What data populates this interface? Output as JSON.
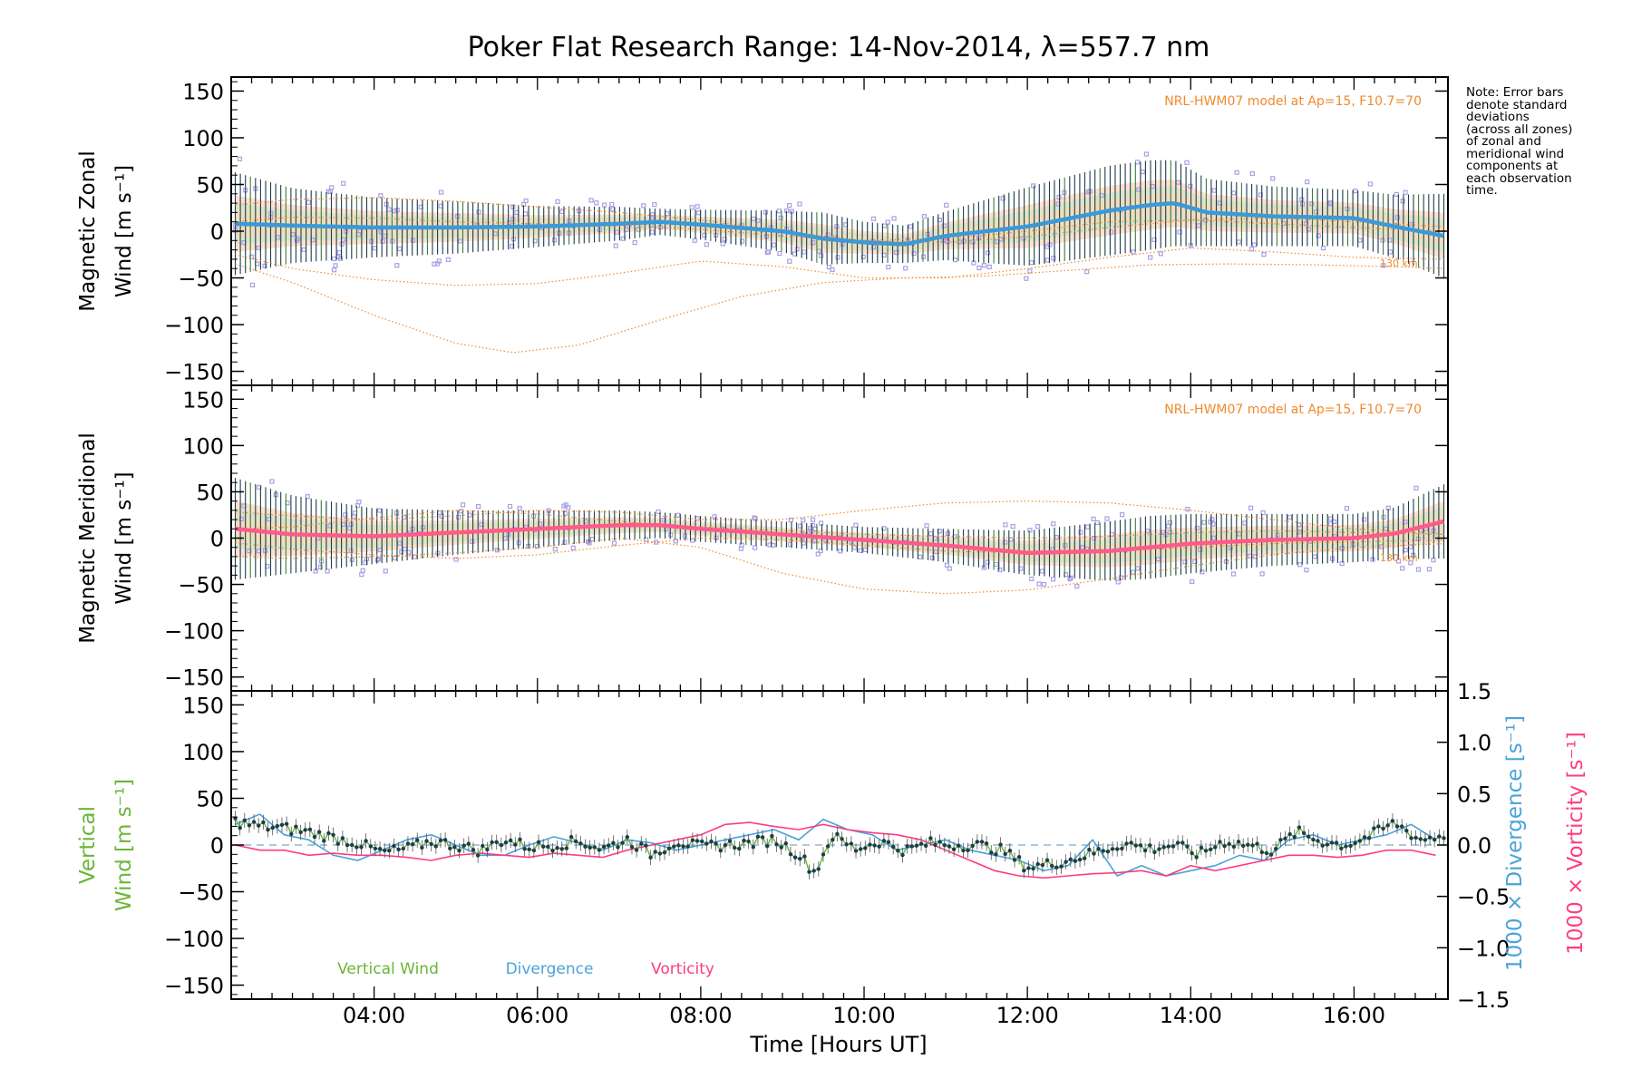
{
  "title": "Poker Flat Research Range: 14-Nov-2014, λ=557.7 nm",
  "note": [
    "Note: Error bars",
    "denote standard",
    "deviations",
    "(across all zones)",
    "of zonal and",
    "meridional wind",
    "components at",
    "each observation",
    "time."
  ],
  "model_label": "NRL-HWM07 model at Ap=15, F10.7=70",
  "model_alt_label": "130 km",
  "colors": {
    "model": "#f08a2e",
    "zonal_mean": "#3a9ad9",
    "meridional_mean": "#ff5a8c",
    "vertical": "#6ab536",
    "divergence": "#4aa3d8",
    "vorticity": "#ff3c80",
    "errorbar": "#1d3d4a",
    "scatter": "#a9a0e6"
  },
  "chart_data": [
    {
      "type": "line",
      "panel": "zonal",
      "ylabel_lines": [
        "Magnetic Zonal",
        "Wind [m s⁻¹]"
      ],
      "xlim": [
        2.25,
        17.15
      ],
      "ylim": [
        -165,
        165
      ],
      "yticks": [
        "150",
        "100",
        "50",
        "0",
        "−50",
        "−100",
        "−150"
      ],
      "ytick_values": [
        150,
        100,
        50,
        0,
        -50,
        -100,
        -150
      ],
      "series": [
        {
          "role": "mean",
          "x": [
            2.3,
            3,
            4,
            5,
            6,
            7,
            7.5,
            8,
            9,
            9.5,
            10,
            10.5,
            11,
            12,
            13,
            13.5,
            13.8,
            14.2,
            15,
            16,
            16.5,
            17.1
          ],
          "y": [
            8,
            6,
            4,
            4,
            5,
            8,
            10,
            7,
            0,
            -8,
            -12,
            -14,
            -5,
            5,
            22,
            28,
            30,
            20,
            16,
            14,
            5,
            -5
          ]
        },
        {
          "role": "spread",
          "x": [
            2.3,
            3,
            4,
            5,
            6,
            7,
            7.5,
            8,
            9,
            9.5,
            10,
            10.5,
            11,
            12,
            13,
            13.5,
            13.8,
            14.2,
            15,
            16,
            16.5,
            17.1
          ],
          "y": [
            55,
            40,
            32,
            28,
            22,
            18,
            14,
            16,
            22,
            28,
            22,
            20,
            26,
            42,
            48,
            48,
            46,
            36,
            32,
            30,
            34,
            45
          ]
        },
        {
          "role": "model",
          "x": [
            2.3,
            3,
            4,
            5,
            6,
            7,
            8,
            9,
            10,
            11,
            12,
            13,
            14,
            15,
            16,
            17.1
          ],
          "y": [
            28,
            34,
            36,
            32,
            26,
            20,
            12,
            0,
            -10,
            -12,
            -6,
            4,
            12,
            14,
            10,
            5
          ]
        },
        {
          "role": "model",
          "x": [
            2.3,
            3,
            4,
            5,
            6,
            7,
            8,
            9,
            10,
            11,
            12,
            13,
            14,
            15,
            16,
            17.1
          ],
          "y": [
            -25,
            -40,
            -52,
            -58,
            -56,
            -45,
            -32,
            -38,
            -50,
            -50,
            -40,
            -28,
            -18,
            -22,
            -28,
            -30
          ]
        },
        {
          "role": "model",
          "x": [
            2.3,
            3,
            4,
            5,
            5.7,
            6.5,
            7.5,
            8.5,
            9.5,
            10.5,
            11.5,
            12.5,
            13.5,
            14.5,
            15.5,
            16.5,
            17.1
          ],
          "y": [
            -35,
            -55,
            -90,
            -120,
            -130,
            -122,
            -95,
            -70,
            -55,
            -50,
            -48,
            -42,
            -36,
            -35,
            -36,
            -38,
            -40
          ]
        },
        {
          "role": "model",
          "x": [
            2.3,
            3,
            4,
            5,
            6,
            7,
            8,
            9,
            10,
            11,
            12,
            13,
            14,
            15,
            16,
            17.1
          ],
          "y": [
            10,
            15,
            14,
            10,
            8,
            6,
            2,
            -5,
            -10,
            -8,
            0,
            10,
            12,
            8,
            4,
            0
          ]
        }
      ]
    },
    {
      "type": "line",
      "panel": "meridional",
      "ylabel_lines": [
        "Magnetic Meridional",
        "Wind [m s⁻¹]"
      ],
      "xlim": [
        2.25,
        17.15
      ],
      "ylim": [
        -165,
        165
      ],
      "yticks": [
        "150",
        "100",
        "50",
        "0",
        "−50",
        "−100",
        "−150"
      ],
      "ytick_values": [
        150,
        100,
        50,
        0,
        -50,
        -100,
        -150
      ],
      "series": [
        {
          "role": "mean",
          "x": [
            2.3,
            3,
            4,
            5,
            6,
            7,
            7.5,
            8,
            9,
            10,
            11,
            12,
            13,
            13.5,
            14,
            15,
            16,
            16.5,
            17.1
          ],
          "y": [
            10,
            4,
            2,
            6,
            10,
            14,
            14,
            10,
            4,
            -2,
            -8,
            -16,
            -14,
            -10,
            -6,
            -2,
            0,
            5,
            18
          ]
        },
        {
          "role": "spread",
          "x": [
            2.3,
            3,
            4,
            5,
            6,
            7,
            7.5,
            8,
            9,
            10,
            11,
            12,
            13,
            13.5,
            14,
            15,
            16,
            16.5,
            17.1
          ],
          "y": [
            55,
            42,
            30,
            24,
            20,
            16,
            14,
            14,
            14,
            14,
            18,
            24,
            32,
            34,
            32,
            28,
            26,
            28,
            40
          ]
        },
        {
          "role": "model",
          "x": [
            2.3,
            3,
            4,
            5,
            6,
            7,
            8,
            9,
            10,
            11,
            12,
            13,
            14,
            15,
            16,
            17.1
          ],
          "y": [
            28,
            24,
            20,
            24,
            30,
            28,
            20,
            20,
            30,
            38,
            40,
            38,
            30,
            20,
            10,
            4
          ]
        },
        {
          "role": "model",
          "x": [
            2.3,
            3,
            4,
            5,
            6,
            7,
            8,
            9,
            10,
            11,
            12,
            13,
            14,
            15,
            16,
            17.1
          ],
          "y": [
            -5,
            -12,
            -18,
            -22,
            -18,
            -8,
            0,
            -2,
            -8,
            -14,
            -16,
            -14,
            -10,
            -6,
            -4,
            -2
          ]
        },
        {
          "role": "model",
          "x": [
            2.3,
            3,
            4,
            5,
            6,
            7,
            8,
            9,
            10,
            11,
            12,
            13,
            14,
            15,
            16,
            17.1
          ],
          "y": [
            -20,
            -22,
            -20,
            -16,
            -10,
            0,
            -10,
            -38,
            -55,
            -60,
            -56,
            -44,
            -30,
            -18,
            -10,
            -6
          ]
        },
        {
          "role": "model",
          "x": [
            2.3,
            3,
            4,
            5,
            6,
            7,
            8,
            9,
            10,
            11,
            12,
            13,
            14,
            15,
            16,
            17.1
          ],
          "y": [
            10,
            12,
            22,
            30,
            26,
            18,
            12,
            8,
            4,
            2,
            0,
            2,
            6,
            8,
            6,
            4
          ]
        }
      ]
    },
    {
      "type": "line",
      "panel": "vertical",
      "ylabel_left": [
        "Vertical",
        "Wind [m s⁻¹]"
      ],
      "ylabel_right_div": "1000 × Divergence [s⁻¹]",
      "ylabel_right_vor": "1000 × Vorticity [s⁻¹]",
      "xlabel": "Time [Hours UT]",
      "xlim": [
        2.25,
        17.15
      ],
      "ylim": [
        -165,
        165
      ],
      "ylim_right": [
        -1.5,
        1.5
      ],
      "yticks": [
        "150",
        "100",
        "50",
        "0",
        "−50",
        "−100",
        "−150"
      ],
      "ytick_values": [
        150,
        100,
        50,
        0,
        -50,
        -100,
        -150
      ],
      "yticks_right": [
        "1.5",
        "1.0",
        "0.5",
        "0.0",
        "−0.5",
        "−1.0",
        "−1.5"
      ],
      "ytick_right_values": [
        1.5,
        1.0,
        0.5,
        0.0,
        -0.5,
        -1.0,
        -1.5
      ],
      "xticks": [
        "04:00",
        "06:00",
        "08:00",
        "10:00",
        "12:00",
        "14:00",
        "16:00"
      ],
      "xtick_values": [
        4,
        6,
        8,
        10,
        12,
        14,
        16
      ],
      "legend": [
        "Vertical Wind",
        "Divergence",
        "Vorticity"
      ],
      "series": [
        {
          "name": "Vertical Wind",
          "x": [
            2.3,
            2.6,
            2.9,
            3.2,
            3.5,
            3.8,
            4.1,
            4.4,
            4.7,
            5.0,
            5.3,
            5.6,
            5.9,
            6.2,
            6.5,
            6.8,
            7.1,
            7.4,
            7.7,
            8.0,
            8.3,
            8.6,
            8.9,
            9.2,
            9.4,
            9.6,
            9.9,
            10.2,
            10.5,
            10.8,
            11.1,
            11.4,
            11.7,
            12.0,
            12.3,
            12.6,
            12.9,
            13.2,
            13.5,
            13.8,
            14.1,
            14.4,
            14.7,
            15.0,
            15.3,
            15.6,
            15.9,
            16.2,
            16.5,
            16.8,
            17.1
          ],
          "y": [
            25,
            20,
            18,
            14,
            8,
            2,
            -8,
            -4,
            4,
            0,
            -6,
            6,
            -2,
            0,
            4,
            -4,
            6,
            -10,
            4,
            -2,
            0,
            2,
            6,
            -10,
            -30,
            10,
            -4,
            4,
            -6,
            2,
            0,
            0,
            -6,
            -24,
            -20,
            -14,
            -6,
            2,
            -4,
            0,
            -10,
            4,
            0,
            -6,
            14,
            4,
            0,
            10,
            24,
            6,
            10
          ]
        },
        {
          "name": "Divergence",
          "axis": "right",
          "x": [
            2.3,
            2.6,
            2.9,
            3.2,
            3.5,
            3.8,
            4.1,
            4.4,
            4.7,
            5.0,
            5.3,
            5.6,
            5.9,
            6.2,
            6.5,
            6.8,
            7.1,
            7.4,
            7.7,
            8.0,
            8.3,
            8.6,
            8.9,
            9.2,
            9.5,
            9.8,
            10.1,
            10.4,
            10.7,
            11.0,
            11.3,
            11.6,
            11.9,
            12.2,
            12.5,
            12.8,
            13.1,
            13.4,
            13.7,
            14.0,
            14.3,
            14.6,
            14.9,
            15.2,
            15.5,
            15.8,
            16.1,
            16.4,
            16.7,
            17.0
          ],
          "y": [
            0.2,
            0.3,
            0.1,
            0.05,
            -0.1,
            -0.15,
            -0.05,
            0.05,
            0.1,
            0.0,
            -0.1,
            -0.1,
            0.0,
            0.08,
            0.02,
            -0.05,
            0.05,
            0.02,
            -0.05,
            0.0,
            0.05,
            0.1,
            0.15,
            0.05,
            0.25,
            0.15,
            0.1,
            -0.05,
            0.0,
            0.05,
            -0.05,
            -0.1,
            -0.15,
            -0.25,
            -0.2,
            0.05,
            -0.3,
            -0.2,
            -0.3,
            -0.25,
            -0.2,
            -0.1,
            -0.15,
            0.05,
            0.1,
            0.0,
            0.05,
            0.1,
            0.2,
            0.05
          ]
        },
        {
          "name": "Vorticity",
          "axis": "right",
          "x": [
            2.3,
            2.6,
            2.9,
            3.2,
            3.5,
            3.8,
            4.1,
            4.4,
            4.7,
            5.0,
            5.3,
            5.6,
            5.9,
            6.2,
            6.5,
            6.8,
            7.1,
            7.4,
            7.7,
            8.0,
            8.3,
            8.6,
            8.9,
            9.2,
            9.5,
            9.8,
            10.1,
            10.4,
            10.7,
            11.0,
            11.3,
            11.6,
            11.9,
            12.2,
            12.5,
            12.8,
            13.1,
            13.4,
            13.7,
            14.0,
            14.3,
            14.6,
            14.9,
            15.2,
            15.5,
            15.8,
            16.1,
            16.4,
            16.7,
            17.0
          ],
          "y": [
            0.0,
            -0.05,
            -0.05,
            -0.1,
            -0.08,
            -0.1,
            -0.1,
            -0.12,
            -0.15,
            -0.1,
            -0.08,
            -0.1,
            -0.12,
            -0.08,
            -0.1,
            -0.12,
            -0.05,
            0.0,
            0.05,
            0.1,
            0.2,
            0.22,
            0.18,
            0.15,
            0.2,
            0.15,
            0.12,
            0.1,
            0.05,
            -0.05,
            -0.15,
            -0.25,
            -0.3,
            -0.32,
            -0.3,
            -0.28,
            -0.27,
            -0.25,
            -0.3,
            -0.2,
            -0.25,
            -0.2,
            -0.15,
            -0.1,
            -0.1,
            -0.12,
            -0.1,
            -0.05,
            -0.05,
            -0.1
          ]
        }
      ]
    }
  ]
}
